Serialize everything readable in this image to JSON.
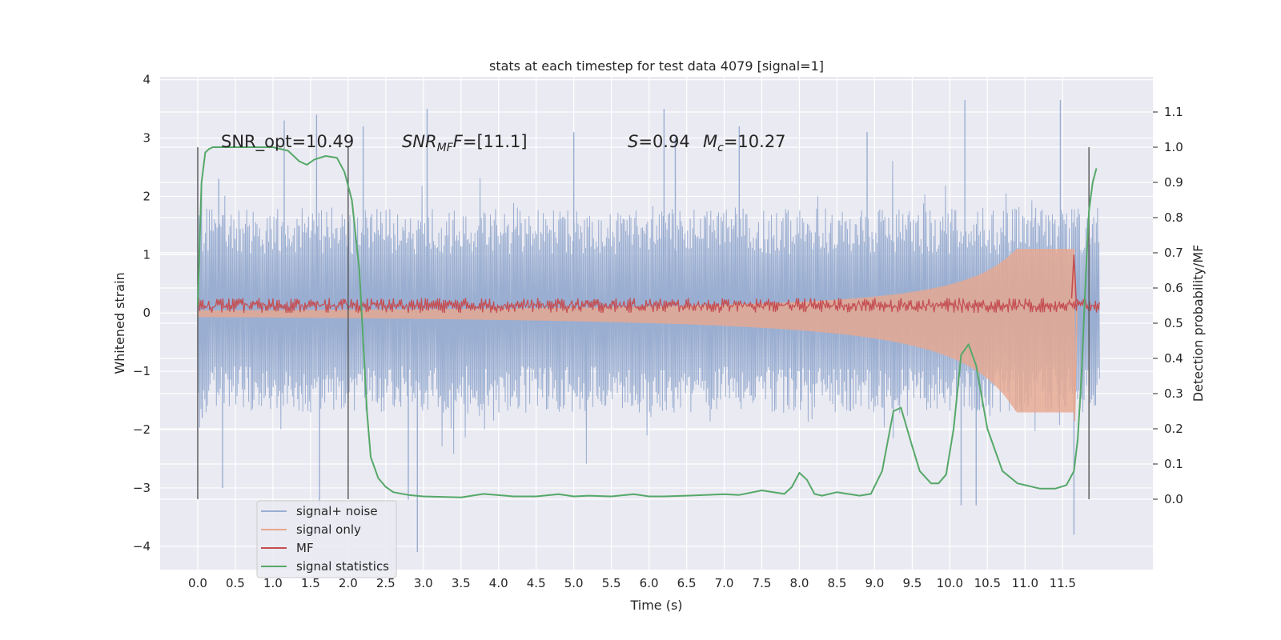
{
  "chart_data": {
    "type": "line",
    "title": "stats at each timestep for test data 4079 [signal=1]",
    "xlabel": "Time (s)",
    "ylabel": "Whitened strain",
    "ylabel_right": "Detection probability/MF",
    "xlim": [
      -0.5,
      12.7
    ],
    "ylim": [
      -4.4,
      4.05
    ],
    "ylim_right": [
      -0.2,
      1.2
    ],
    "grid": true,
    "x_ticks": [
      0.0,
      0.5,
      1.0,
      1.5,
      2.0,
      2.5,
      3.0,
      3.5,
      4.0,
      4.5,
      5.0,
      5.5,
      6.0,
      6.5,
      7.0,
      7.5,
      8.0,
      8.5,
      9.0,
      9.5,
      10.0,
      10.5,
      11.0,
      11.5
    ],
    "x_tick_labels": [
      "0.0",
      "0.5",
      "1.0",
      "1.5",
      "2.0",
      "2.5",
      "3.0",
      "3.5",
      "4.0",
      "4.5",
      "5.0",
      "5.5",
      "6.0",
      "6.5",
      "7.0",
      "7.5",
      "8.0",
      "8.5",
      "9.0",
      "9.5",
      "10.0",
      "10.5",
      "11.0",
      "11.5"
    ],
    "y_ticks": [
      -4,
      -3,
      -2,
      -1,
      0,
      1,
      2,
      3,
      4
    ],
    "y_tick_labels": [
      "−4",
      "−3",
      "−2",
      "−1",
      "0",
      "1",
      "2",
      "3",
      "4"
    ],
    "y_right_ticks": [
      0.0,
      0.1,
      0.2,
      0.3,
      0.4,
      0.5,
      0.6,
      0.7,
      0.8,
      0.9,
      1.0,
      1.1
    ],
    "y_right_tick_labels": [
      "0.0",
      "0.1",
      "0.2",
      "0.3",
      "0.4",
      "0.5",
      "0.6",
      "0.7",
      "0.8",
      "0.9",
      "1.0",
      "1.1"
    ],
    "legend_position": "lower-left",
    "annotations": {
      "snr_opt": "SNR_opt=10.49",
      "snr_mf_base": "SNR",
      "snr_mf_sub": "MF",
      "snr_mf_rest": "=[11.1]",
      "s_sym": "S",
      "s_val": "=0.94",
      "mc_sym": "M",
      "mc_sub": "c",
      "mc_val": "=10.27"
    },
    "vlines_x": [
      0.0,
      2.0,
      11.85
    ],
    "series": [
      {
        "name": "signal+ noise",
        "color": "#9aaed1",
        "axis": "left",
        "x_range": [
          0.0,
          11.99
        ],
        "typical_band": [
          -1.55,
          1.65
        ],
        "peaks": [
          [
            0.05,
            2.2
          ],
          [
            0.06,
            -1.8
          ],
          [
            0.28,
            2.3
          ],
          [
            0.33,
            -3.0
          ],
          [
            1.15,
            3.3
          ],
          [
            1.58,
            3.4
          ],
          [
            1.62,
            -3.3
          ],
          [
            2.2,
            3.2
          ],
          [
            2.8,
            -3.2
          ],
          [
            2.92,
            -4.1
          ],
          [
            3.05,
            3.5
          ],
          [
            5.0,
            3.1
          ],
          [
            6.2,
            3.5
          ],
          [
            6.35,
            3.0
          ],
          [
            7.2,
            3.2
          ],
          [
            8.9,
            3.1
          ],
          [
            10.15,
            -3.3
          ],
          [
            10.2,
            3.65
          ],
          [
            10.35,
            -3.3
          ],
          [
            11.47,
            3.65
          ],
          [
            11.65,
            -3.8
          ]
        ]
      },
      {
        "name": "signal only",
        "color": "#e8a88f",
        "axis": "left",
        "chirp_end_x": 11.65,
        "peak_amplitude": 1.1
      },
      {
        "name": "MF",
        "color": "#c44e52",
        "axis": "left",
        "mean": 0.13,
        "spread": 0.1,
        "spike_x": 11.65,
        "spike_value": 1.0
      },
      {
        "name": "signal statistics",
        "color": "#55a868",
        "axis": "right",
        "x": [
          0.0,
          0.05,
          0.1,
          0.15,
          0.2,
          0.3,
          0.5,
          0.8,
          1.0,
          1.2,
          1.35,
          1.45,
          1.55,
          1.7,
          1.85,
          1.95,
          2.05,
          2.15,
          2.2,
          2.25,
          2.3,
          2.4,
          2.5,
          2.6,
          2.8,
          3.0,
          3.5,
          3.8,
          4.2,
          4.5,
          4.8,
          5.0,
          5.2,
          5.5,
          5.8,
          6.0,
          6.2,
          6.5,
          7.0,
          7.2,
          7.5,
          7.8,
          7.9,
          8.0,
          8.1,
          8.2,
          8.3,
          8.5,
          8.8,
          8.95,
          9.1,
          9.25,
          9.35,
          9.5,
          9.6,
          9.75,
          9.85,
          9.95,
          10.05,
          10.15,
          10.25,
          10.35,
          10.5,
          10.7,
          10.9,
          11.0,
          11.2,
          11.4,
          11.55,
          11.65,
          11.7,
          11.75,
          11.8,
          11.85,
          11.9,
          11.95
        ],
        "y": [
          0.55,
          0.9,
          0.985,
          0.995,
          1.0,
          1.0,
          1.0,
          1.0,
          1.0,
          0.99,
          0.96,
          0.95,
          0.965,
          0.975,
          0.97,
          0.93,
          0.85,
          0.65,
          0.45,
          0.25,
          0.12,
          0.06,
          0.035,
          0.02,
          0.012,
          0.008,
          0.005,
          0.015,
          0.008,
          0.008,
          0.014,
          0.008,
          0.01,
          0.008,
          0.014,
          0.008,
          0.008,
          0.01,
          0.014,
          0.012,
          0.025,
          0.015,
          0.035,
          0.075,
          0.055,
          0.015,
          0.01,
          0.02,
          0.01,
          0.015,
          0.08,
          0.25,
          0.26,
          0.15,
          0.08,
          0.045,
          0.045,
          0.07,
          0.2,
          0.41,
          0.44,
          0.38,
          0.2,
          0.08,
          0.045,
          0.04,
          0.03,
          0.03,
          0.04,
          0.08,
          0.17,
          0.35,
          0.6,
          0.82,
          0.9,
          0.94
        ]
      }
    ]
  }
}
